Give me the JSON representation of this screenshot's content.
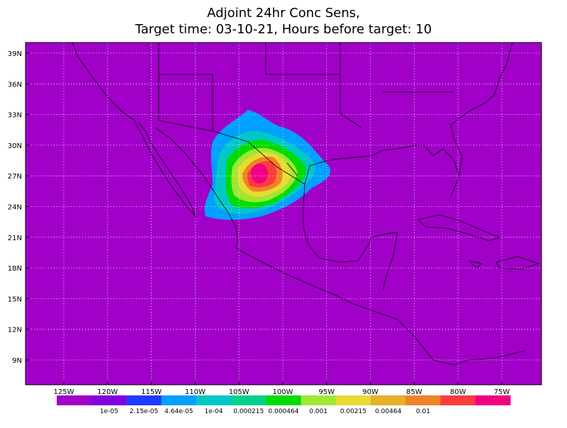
{
  "title": [
    "Adjoint 24hr Conc Sens,",
    "Target time: 03-10-21, Hours before target: 10"
  ],
  "lat_labels": [
    "39N",
    "36N",
    "33N",
    "30N",
    "27N",
    "24N",
    "21N",
    "18N",
    "15N",
    "12N",
    "9N"
  ],
  "lon_labels": [
    "125W",
    "120W",
    "115W",
    "110W",
    "105W",
    "100W",
    "95W",
    "90W",
    "85W",
    "80W",
    "75W"
  ],
  "colorbar": {
    "colors": [
      "#a000c8",
      "#8200dc",
      "#1e3cff",
      "#00a0ff",
      "#00c8c8",
      "#00d28c",
      "#00dc00",
      "#a0e632",
      "#e6dc32",
      "#e6af2d",
      "#f08228",
      "#fa3c3c",
      "#f00082"
    ],
    "labels": [
      "1e-05",
      "2.15e-05",
      "4.64e-05",
      "1e-04",
      "0.000215",
      "0.000464",
      "0.001",
      "0.00215",
      "0.00464",
      "0.01"
    ]
  }
}
